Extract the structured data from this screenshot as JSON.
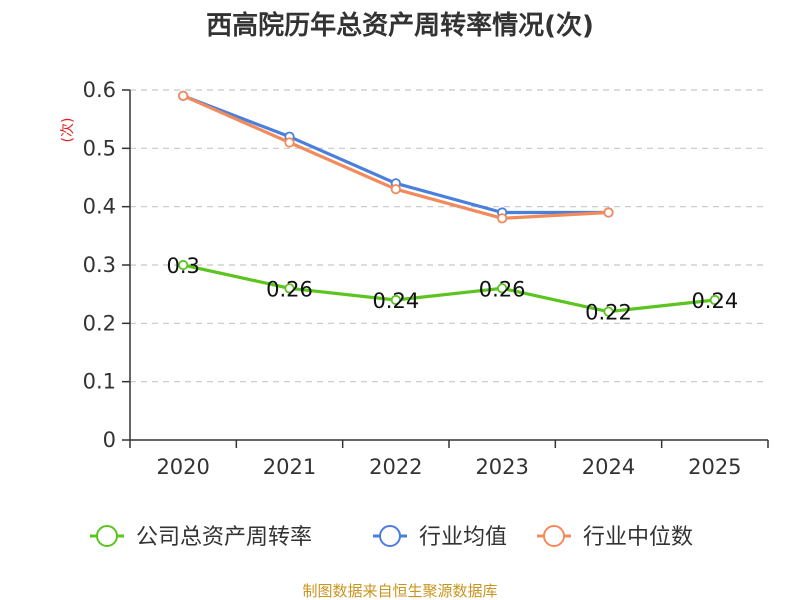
{
  "chart_data": {
    "type": "line",
    "title": "西高院历年总资产周转率情况(次)",
    "ylabel": "(次)",
    "xlabel": "",
    "categories": [
      "2020",
      "2021",
      "2022",
      "2023",
      "2024",
      "2025"
    ],
    "ylim": [
      0,
      0.6
    ],
    "yticks": [
      0,
      0.1,
      0.2,
      0.3,
      0.4,
      0.5,
      0.6
    ],
    "ytick_labels": [
      "0",
      "0.1",
      "0.2",
      "0.3",
      "0.4",
      "0.5",
      "0.6"
    ],
    "grid": true,
    "legend_position": "bottom",
    "series": [
      {
        "name": "公司总资产周转率",
        "color": "#5cc41f",
        "values": [
          0.3,
          0.26,
          0.24,
          0.26,
          0.22,
          0.24
        ],
        "labels": [
          "0.3",
          "0.26",
          "0.24",
          "0.26",
          "0.22",
          "0.24"
        ],
        "show_labels": true
      },
      {
        "name": "行业均值",
        "color": "#4a7fdc",
        "values": [
          0.59,
          0.52,
          0.44,
          0.39,
          0.39,
          null
        ],
        "show_labels": false
      },
      {
        "name": "行业中位数",
        "color": "#f28b5c",
        "values": [
          0.59,
          0.51,
          0.43,
          0.38,
          0.39,
          null
        ],
        "show_labels": false
      }
    ]
  },
  "source": {
    "text": "制图数据来自恒生聚源数据库",
    "color": "#c8961e"
  },
  "ylabel_color": "#e02020"
}
